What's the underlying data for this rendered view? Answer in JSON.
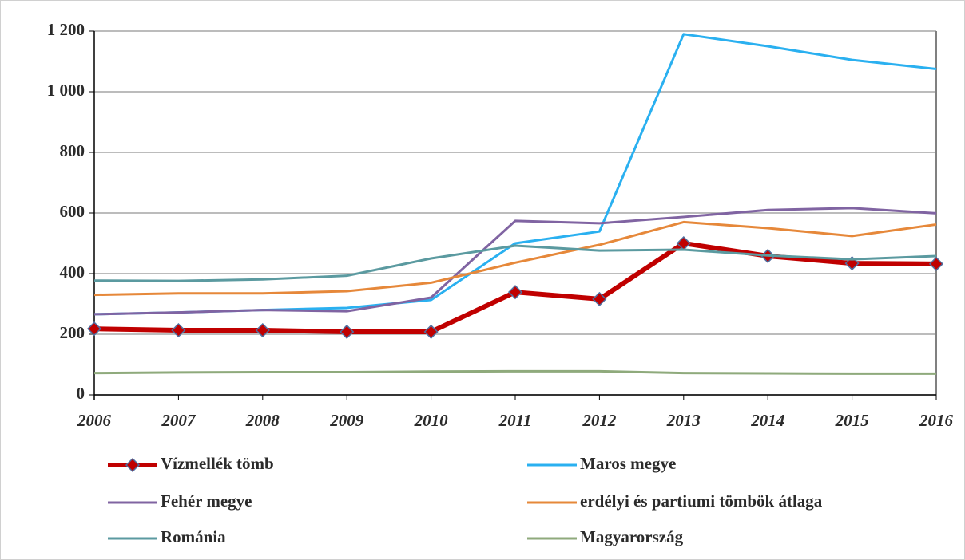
{
  "chart_data": {
    "type": "line",
    "x": [
      "2006",
      "2007",
      "2008",
      "2009",
      "2010",
      "2011",
      "2012",
      "2013",
      "2014",
      "2015",
      "2016"
    ],
    "series": [
      {
        "name": "Vízmellék tömb",
        "color": "#c00000",
        "values": [
          218,
          213,
          213,
          208,
          208,
          339,
          316,
          500,
          458,
          434,
          432
        ]
      },
      {
        "name": "Maros megye",
        "color": "#2ab0f0",
        "values": [
          266,
          272,
          280,
          287,
          313,
          500,
          539,
          1190,
          1150,
          1105,
          1075
        ]
      },
      {
        "name": "Fehér megye",
        "color": "#8064a2",
        "values": [
          266,
          272,
          280,
          276,
          321,
          574,
          566,
          587,
          610,
          616,
          599
        ]
      },
      {
        "name": "erdélyi és partiumi tömbök átlaga",
        "color": "#e6883a",
        "values": [
          330,
          335,
          335,
          342,
          370,
          436,
          495,
          570,
          550,
          524,
          562
        ]
      },
      {
        "name": "Románia",
        "color": "#5b9aa0",
        "values": [
          377,
          376,
          381,
          393,
          450,
          492,
          476,
          479,
          460,
          447,
          458
        ]
      },
      {
        "name": "Magyarország",
        "color": "#8faa7c",
        "values": [
          72,
          74,
          75,
          75,
          77,
          78,
          78,
          72,
          71,
          70,
          70
        ]
      }
    ],
    "ylim": [
      0,
      1200
    ],
    "yticks": [
      0,
      200,
      400,
      600,
      800,
      {
        "value": 1000,
        "label": "1 000"
      },
      {
        "value": 1200,
        "label": "1 200"
      }
    ],
    "grid": true
  }
}
